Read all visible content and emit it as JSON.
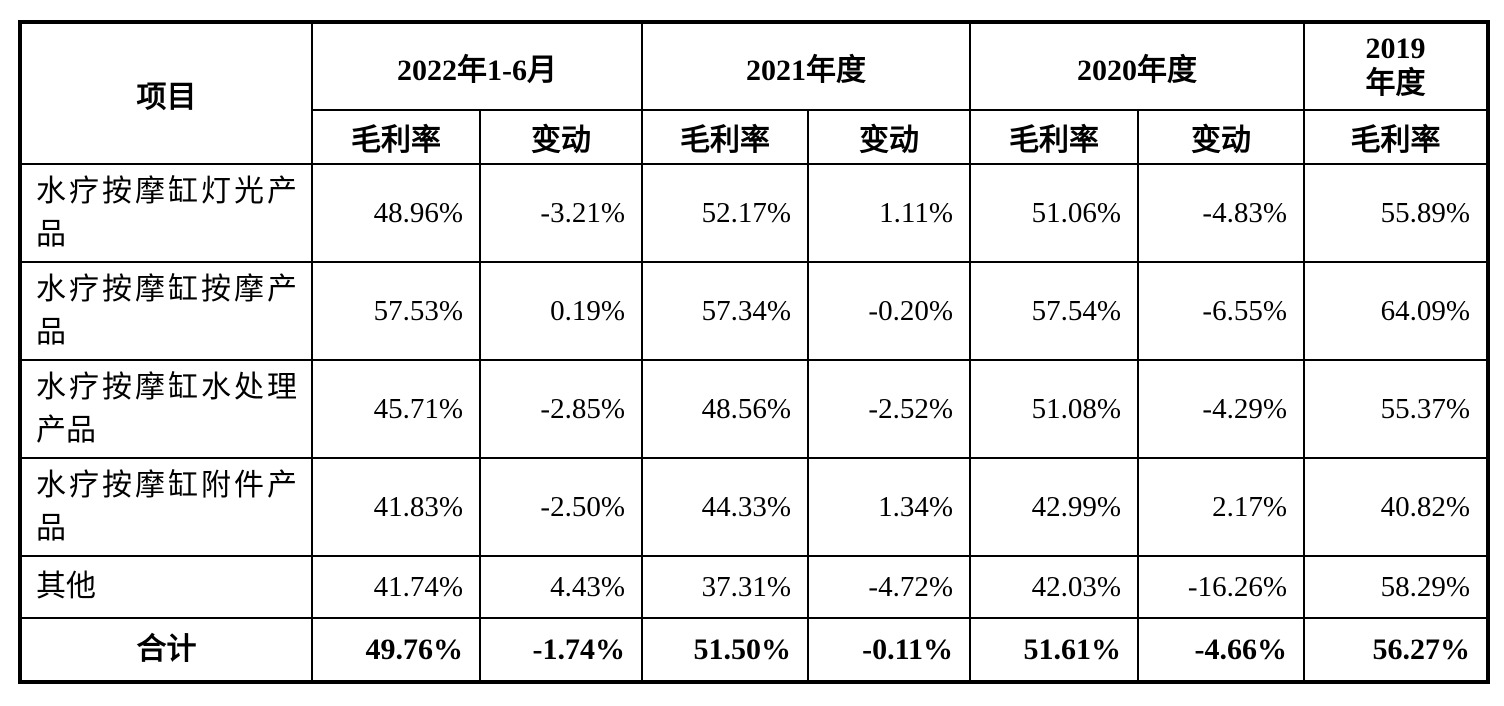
{
  "table": {
    "header": {
      "item_label": "项目",
      "periods": [
        {
          "label": "2022年1-6月"
        },
        {
          "label": "2021年度"
        },
        {
          "label": "2020年度"
        },
        {
          "label": "2019\n年度"
        }
      ],
      "subcols": [
        "毛利率",
        "变动",
        "毛利率",
        "变动",
        "毛利率",
        "变动",
        "毛利率"
      ]
    },
    "rows": [
      {
        "label": "水疗按摩缸灯光产品",
        "two_line": true,
        "total": false,
        "values": [
          "48.96%",
          "-3.21%",
          "52.17%",
          "1.11%",
          "51.06%",
          "-4.83%",
          "55.89%"
        ]
      },
      {
        "label": "水疗按摩缸按摩产品",
        "two_line": true,
        "total": false,
        "values": [
          "57.53%",
          "0.19%",
          "57.34%",
          "-0.20%",
          "57.54%",
          "-6.55%",
          "64.09%"
        ]
      },
      {
        "label": "水疗按摩缸水处理产品",
        "two_line": true,
        "total": false,
        "values": [
          "45.71%",
          "-2.85%",
          "48.56%",
          "-2.52%",
          "51.08%",
          "-4.29%",
          "55.37%"
        ]
      },
      {
        "label": "水疗按摩缸附件产品",
        "two_line": true,
        "total": false,
        "values": [
          "41.83%",
          "-2.50%",
          "44.33%",
          "1.34%",
          "42.99%",
          "2.17%",
          "40.82%"
        ]
      },
      {
        "label": "其他",
        "two_line": false,
        "total": false,
        "values": [
          "41.74%",
          "4.43%",
          "37.31%",
          "-4.72%",
          "42.03%",
          "-16.26%",
          "58.29%"
        ]
      },
      {
        "label": "合计",
        "two_line": false,
        "total": true,
        "values": [
          "49.76%",
          "-1.74%",
          "51.50%",
          "-0.11%",
          "51.61%",
          "-4.66%",
          "56.27%"
        ]
      }
    ]
  }
}
